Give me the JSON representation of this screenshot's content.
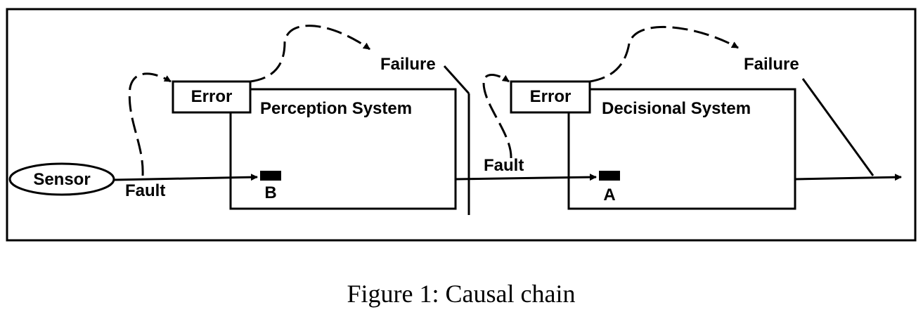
{
  "diagram": {
    "sensor_label": "Sensor",
    "perception": {
      "system_label": "Perception System",
      "error_label": "Error",
      "failure_label": "Failure",
      "marker_label": "B"
    },
    "decisional": {
      "system_label": "Decisional System",
      "error_label": "Error",
      "failure_label": "Failure",
      "marker_label": "A"
    },
    "fault_labels": [
      "Fault",
      "Fault"
    ]
  },
  "caption": "Figure 1: Causal chain"
}
